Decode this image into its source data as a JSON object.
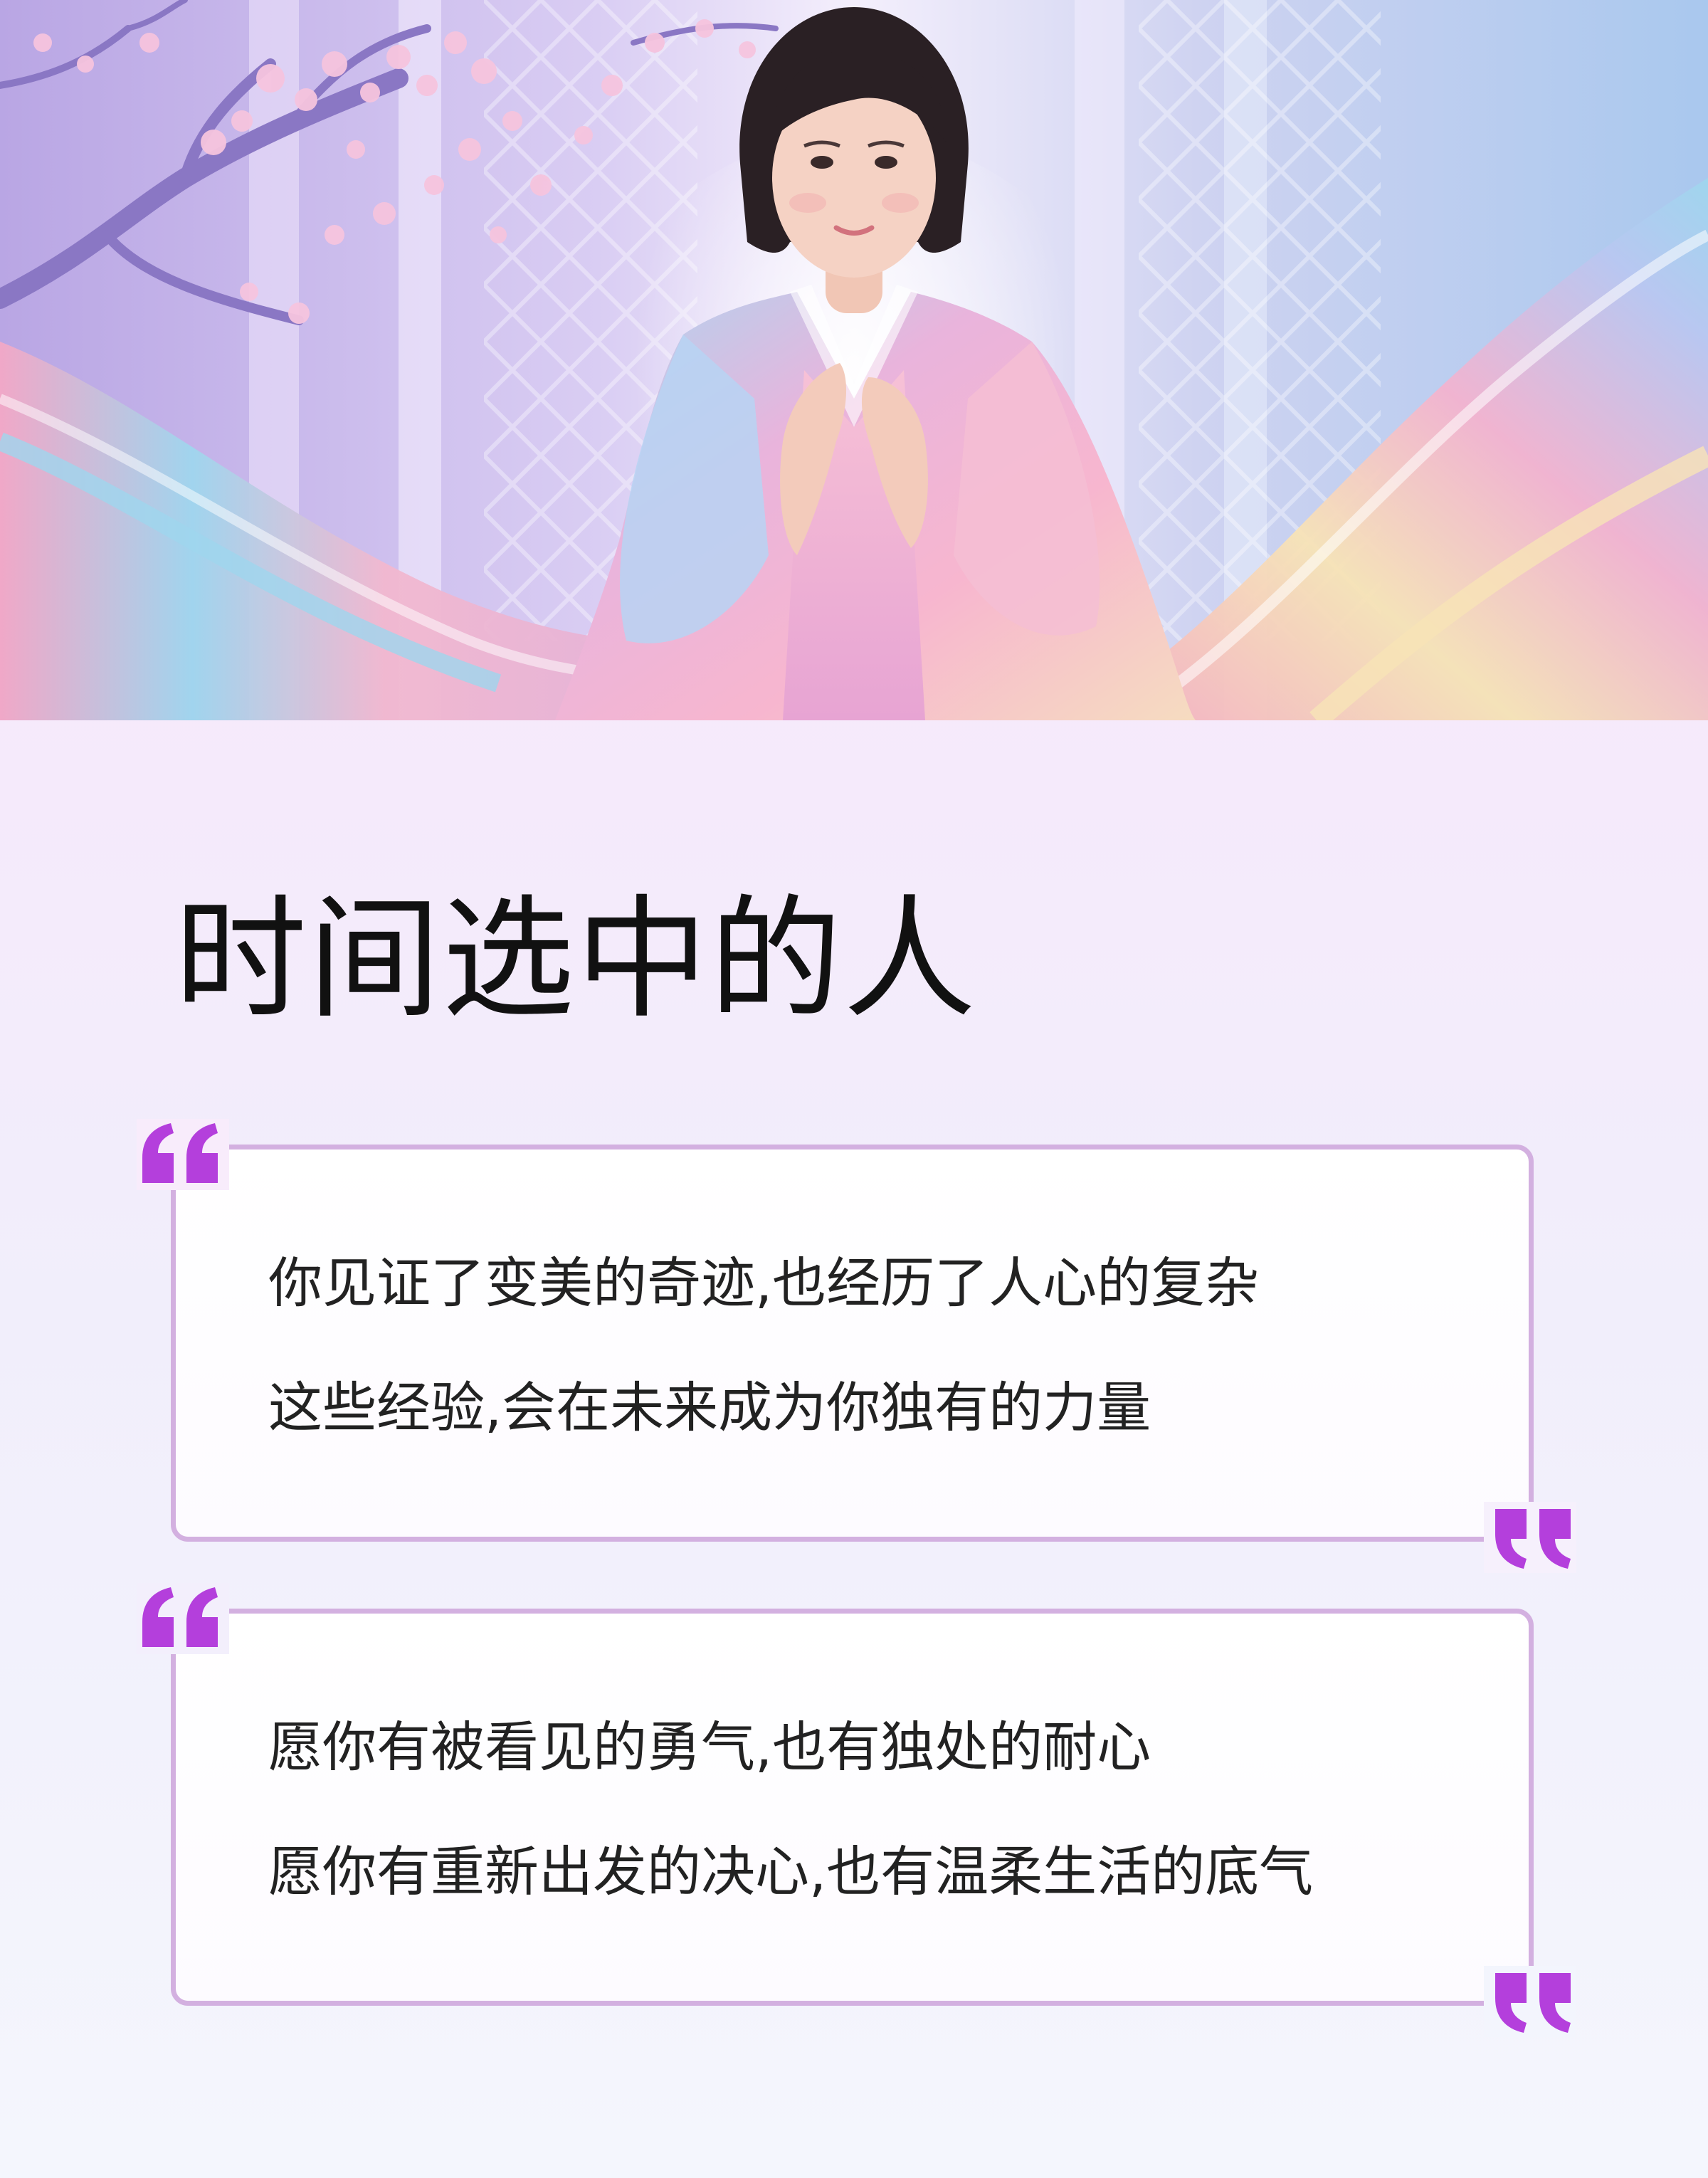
{
  "hero": {
    "image": "woman-in-iridescent-silk-robe-with-cherry-blossoms",
    "colors": {
      "sky_top": "#c7b6ea",
      "pillar": "#eee6fb",
      "blossom": "#f6c4de",
      "branch": "#8a77c4",
      "silk_pink": "#f3a8c6",
      "silk_blue": "#9fd6ee",
      "silk_yellow": "#f7e3b6",
      "skin": "#f5d2c4",
      "hair": "#2a2024"
    }
  },
  "title": "时间选中的人",
  "cards": [
    {
      "lines": [
        "你见证了变美的奇迹,也经历了人心的复杂",
        "这些经验,会在未来成为你独有的力量"
      ]
    },
    {
      "lines": [
        "愿你有被看见的勇气,也有独处的耐心",
        "愿你有重新出发的决心,也有温柔生活的底气"
      ]
    }
  ],
  "colors": {
    "quote_mark": "#b43fdc",
    "card_border": "#d3b0e0",
    "text": "#222222",
    "title": "#111111"
  }
}
